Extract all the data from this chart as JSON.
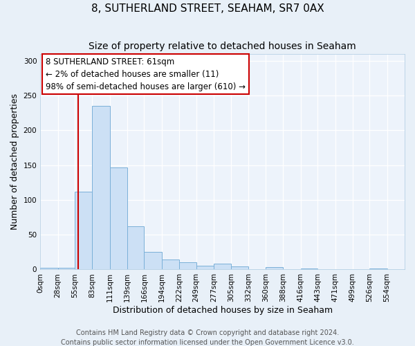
{
  "title": "8, SUTHERLAND STREET, SEAHAM, SR7 0AX",
  "subtitle": "Size of property relative to detached houses in Seaham",
  "xlabel": "Distribution of detached houses by size in Seaham",
  "ylabel": "Number of detached properties",
  "bin_labels": [
    "0sqm",
    "28sqm",
    "55sqm",
    "83sqm",
    "111sqm",
    "139sqm",
    "166sqm",
    "194sqm",
    "222sqm",
    "249sqm",
    "277sqm",
    "305sqm",
    "332sqm",
    "360sqm",
    "388sqm",
    "416sqm",
    "443sqm",
    "471sqm",
    "499sqm",
    "526sqm",
    "554sqm"
  ],
  "bin_edges": [
    0,
    28,
    55,
    83,
    111,
    139,
    166,
    194,
    222,
    249,
    277,
    305,
    332,
    360,
    388,
    416,
    443,
    471,
    499,
    526,
    554
  ],
  "bar_heights": [
    2,
    2,
    112,
    235,
    147,
    62,
    25,
    14,
    10,
    5,
    8,
    4,
    0,
    3,
    0,
    1,
    0,
    0,
    0,
    1
  ],
  "bar_color": "#cce0f5",
  "bar_edge_color": "#7ab0d8",
  "vline_x": 61,
  "vline_color": "#cc0000",
  "ylim": [
    0,
    310
  ],
  "yticks": [
    0,
    50,
    100,
    150,
    200,
    250,
    300
  ],
  "annotation_text_line1": "8 SUTHERLAND STREET: 61sqm",
  "annotation_text_line2": "← 2% of detached houses are smaller (11)",
  "annotation_text_line3": "98% of semi-detached houses are larger (610) →",
  "footer_line1": "Contains HM Land Registry data © Crown copyright and database right 2024.",
  "footer_line2": "Contains public sector information licensed under the Open Government Licence v3.0.",
  "bg_color": "#e8f0f8",
  "plot_bg_color": "#edf3fb",
  "title_fontsize": 11,
  "subtitle_fontsize": 10,
  "axis_label_fontsize": 9,
  "tick_fontsize": 7.5,
  "annotation_fontsize": 8.5,
  "footer_fontsize": 7
}
